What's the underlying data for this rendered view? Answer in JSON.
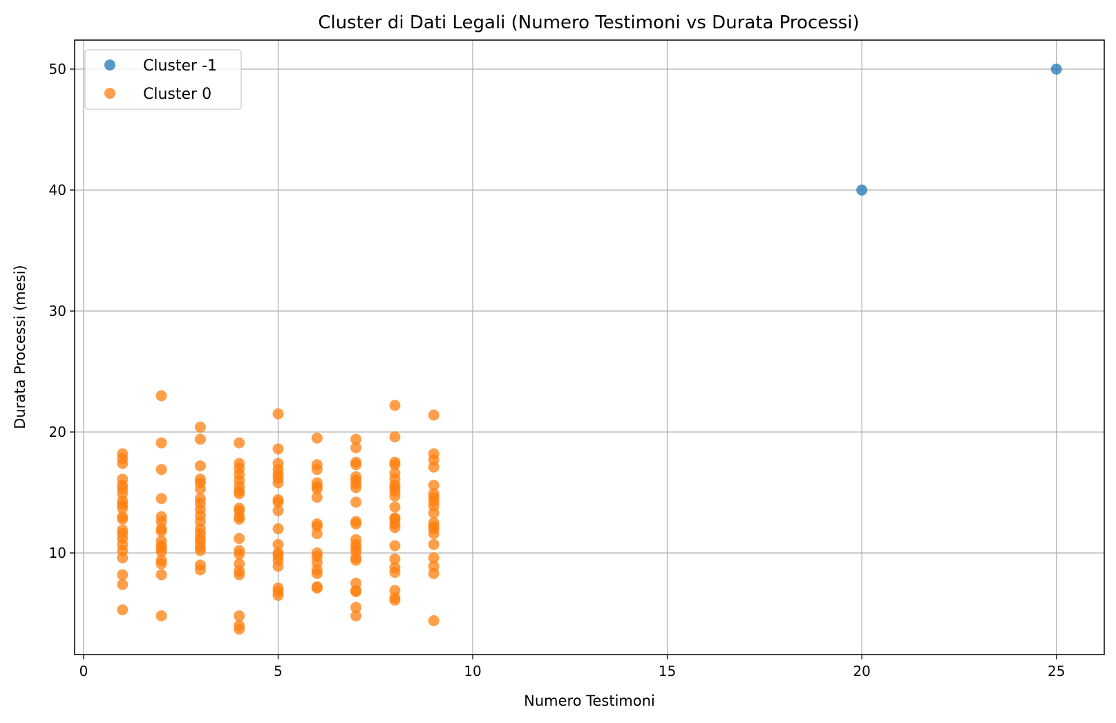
{
  "chart_data": {
    "type": "scatter",
    "title": "Cluster di Dati Legali (Numero Testimoni vs Durata Processi)",
    "xlabel": "Numero Testimoni",
    "ylabel": "Durata Processi (mesi)",
    "xlim": [
      -0.23,
      26.23
    ],
    "ylim": [
      1.6,
      52.4
    ],
    "xticks": [
      0,
      5,
      10,
      15,
      20,
      25
    ],
    "yticks": [
      10,
      20,
      30,
      40,
      50
    ],
    "grid": true,
    "legend_position": "top-left",
    "series": [
      {
        "name": "Cluster -1",
        "color": "#1f77b4",
        "points": [
          [
            20,
            40
          ],
          [
            25,
            50
          ]
        ]
      },
      {
        "name": "Cluster 0",
        "color": "#ff7f0e",
        "points": [
          [
            1,
            18.2
          ],
          [
            1,
            17.8
          ],
          [
            1,
            17.4
          ],
          [
            1,
            16.1
          ],
          [
            1,
            15.6
          ],
          [
            1,
            15.3
          ],
          [
            1,
            14.9
          ],
          [
            1,
            14.3
          ],
          [
            1,
            14.0
          ],
          [
            1,
            13.7
          ],
          [
            1,
            13.0
          ],
          [
            1,
            12.8
          ],
          [
            1,
            11.9
          ],
          [
            1,
            11.6
          ],
          [
            1,
            11.2
          ],
          [
            1,
            10.7
          ],
          [
            1,
            10.2
          ],
          [
            1,
            9.6
          ],
          [
            1,
            8.2
          ],
          [
            1,
            7.4
          ],
          [
            1,
            5.3
          ],
          [
            2,
            23.0
          ],
          [
            2,
            19.1
          ],
          [
            2,
            16.9
          ],
          [
            2,
            14.5
          ],
          [
            2,
            13.0
          ],
          [
            2,
            12.6
          ],
          [
            2,
            12.0
          ],
          [
            2,
            11.8
          ],
          [
            2,
            11.0
          ],
          [
            2,
            10.6
          ],
          [
            2,
            10.4
          ],
          [
            2,
            10.1
          ],
          [
            2,
            9.4
          ],
          [
            2,
            9.1
          ],
          [
            2,
            8.2
          ],
          [
            2,
            4.8
          ],
          [
            3,
            20.4
          ],
          [
            3,
            19.4
          ],
          [
            3,
            17.2
          ],
          [
            3,
            16.1
          ],
          [
            3,
            15.8
          ],
          [
            3,
            15.3
          ],
          [
            3,
            14.5
          ],
          [
            3,
            14.1
          ],
          [
            3,
            13.6
          ],
          [
            3,
            13.1
          ],
          [
            3,
            12.6
          ],
          [
            3,
            12.0
          ],
          [
            3,
            11.6
          ],
          [
            3,
            11.2
          ],
          [
            3,
            10.9
          ],
          [
            3,
            10.5
          ],
          [
            3,
            10.2
          ],
          [
            3,
            9.0
          ],
          [
            3,
            8.6
          ],
          [
            4,
            19.1
          ],
          [
            4,
            17.4
          ],
          [
            4,
            17.0
          ],
          [
            4,
            16.5
          ],
          [
            4,
            16.0
          ],
          [
            4,
            15.5
          ],
          [
            4,
            15.1
          ],
          [
            4,
            14.9
          ],
          [
            4,
            13.7
          ],
          [
            4,
            13.5
          ],
          [
            4,
            13.0
          ],
          [
            4,
            12.8
          ],
          [
            4,
            11.2
          ],
          [
            4,
            10.2
          ],
          [
            4,
            9.9
          ],
          [
            4,
            9.1
          ],
          [
            4,
            8.5
          ],
          [
            4,
            8.2
          ],
          [
            4,
            4.8
          ],
          [
            4,
            4.0
          ],
          [
            4,
            3.7
          ],
          [
            5,
            21.5
          ],
          [
            5,
            18.6
          ],
          [
            5,
            17.4
          ],
          [
            5,
            16.9
          ],
          [
            5,
            16.5
          ],
          [
            5,
            16.2
          ],
          [
            5,
            15.8
          ],
          [
            5,
            14.4
          ],
          [
            5,
            14.2
          ],
          [
            5,
            13.5
          ],
          [
            5,
            12.0
          ],
          [
            5,
            10.7
          ],
          [
            5,
            10.0
          ],
          [
            5,
            9.8
          ],
          [
            5,
            9.4
          ],
          [
            5,
            8.9
          ],
          [
            5,
            7.1
          ],
          [
            5,
            6.8
          ],
          [
            5,
            6.5
          ],
          [
            6,
            19.5
          ],
          [
            6,
            17.3
          ],
          [
            6,
            16.9
          ],
          [
            6,
            15.8
          ],
          [
            6,
            15.5
          ],
          [
            6,
            15.3
          ],
          [
            6,
            14.6
          ],
          [
            6,
            12.4
          ],
          [
            6,
            12.2
          ],
          [
            6,
            11.6
          ],
          [
            6,
            10.0
          ],
          [
            6,
            9.7
          ],
          [
            6,
            9.2
          ],
          [
            6,
            8.6
          ],
          [
            6,
            8.3
          ],
          [
            6,
            7.2
          ],
          [
            6,
            7.1
          ],
          [
            7,
            19.4
          ],
          [
            7,
            18.7
          ],
          [
            7,
            17.5
          ],
          [
            7,
            17.3
          ],
          [
            7,
            16.3
          ],
          [
            7,
            16.0
          ],
          [
            7,
            15.7
          ],
          [
            7,
            15.4
          ],
          [
            7,
            14.2
          ],
          [
            7,
            12.6
          ],
          [
            7,
            12.4
          ],
          [
            7,
            11.1
          ],
          [
            7,
            10.7
          ],
          [
            7,
            10.4
          ],
          [
            7,
            10.1
          ],
          [
            7,
            9.6
          ],
          [
            7,
            9.4
          ],
          [
            7,
            7.5
          ],
          [
            7,
            6.9
          ],
          [
            7,
            6.8
          ],
          [
            7,
            5.5
          ],
          [
            7,
            4.8
          ],
          [
            8,
            22.2
          ],
          [
            8,
            19.6
          ],
          [
            8,
            17.5
          ],
          [
            8,
            17.3
          ],
          [
            8,
            16.6
          ],
          [
            8,
            16.1
          ],
          [
            8,
            15.6
          ],
          [
            8,
            15.4
          ],
          [
            8,
            15.1
          ],
          [
            8,
            14.7
          ],
          [
            8,
            13.8
          ],
          [
            8,
            12.9
          ],
          [
            8,
            12.8
          ],
          [
            8,
            12.4
          ],
          [
            8,
            12.1
          ],
          [
            8,
            10.6
          ],
          [
            8,
            9.5
          ],
          [
            8,
            8.8
          ],
          [
            8,
            8.4
          ],
          [
            8,
            6.9
          ],
          [
            8,
            6.3
          ],
          [
            8,
            6.1
          ],
          [
            9,
            21.4
          ],
          [
            9,
            18.2
          ],
          [
            9,
            17.7
          ],
          [
            9,
            17.1
          ],
          [
            9,
            15.6
          ],
          [
            9,
            14.9
          ],
          [
            9,
            14.6
          ],
          [
            9,
            14.3
          ],
          [
            9,
            13.9
          ],
          [
            9,
            13.3
          ],
          [
            9,
            12.5
          ],
          [
            9,
            12.2
          ],
          [
            9,
            12.0
          ],
          [
            9,
            11.6
          ],
          [
            9,
            10.7
          ],
          [
            9,
            9.6
          ],
          [
            9,
            8.9
          ],
          [
            9,
            8.3
          ],
          [
            9,
            4.4
          ]
        ]
      }
    ]
  }
}
